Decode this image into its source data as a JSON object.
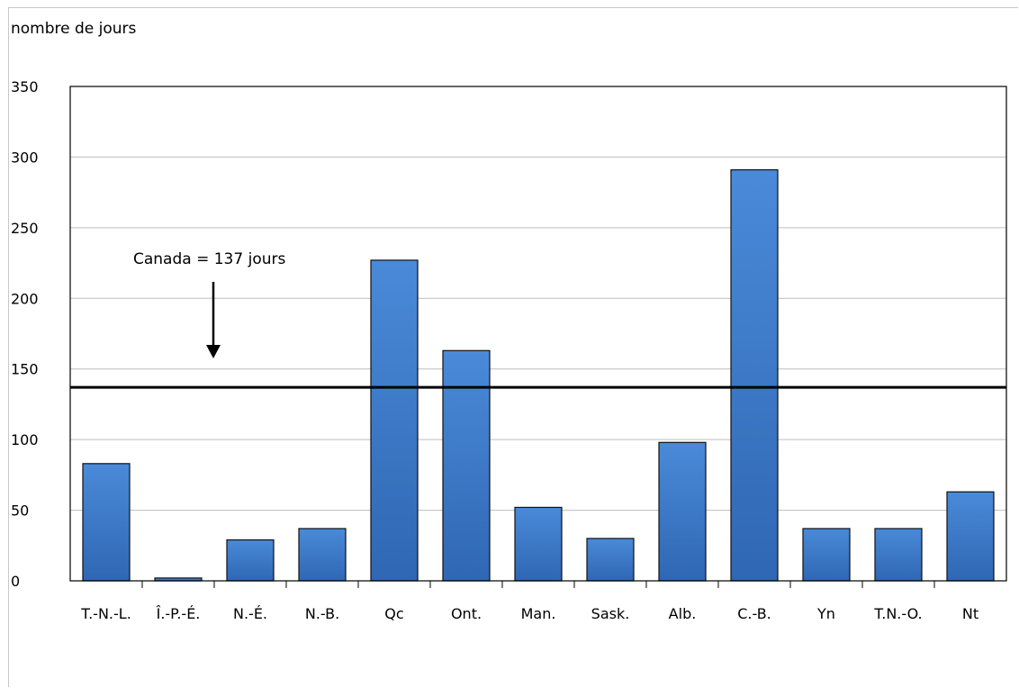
{
  "chart_data": {
    "type": "bar",
    "ylabel": "nombre de jours",
    "xlabel": "",
    "ylim": [
      0,
      350
    ],
    "yticks": [
      0,
      50,
      100,
      150,
      200,
      250,
      300,
      350
    ],
    "grid": true,
    "categories": [
      "T.-N.-L.",
      "Î.-P.-É.",
      "N.-É.",
      "N.-B.",
      "Qc",
      "Ont.",
      "Man.",
      "Sask.",
      "Alb.",
      "C.-B.",
      "Yn",
      "T.N.-O.",
      "Nt"
    ],
    "values": [
      83,
      2,
      29,
      37,
      227,
      163,
      52,
      30,
      98,
      291,
      37,
      37,
      63
    ],
    "bar_color": "#3a78c8",
    "reference_line": {
      "value": 137,
      "label": "Canada = 137 jours"
    }
  }
}
